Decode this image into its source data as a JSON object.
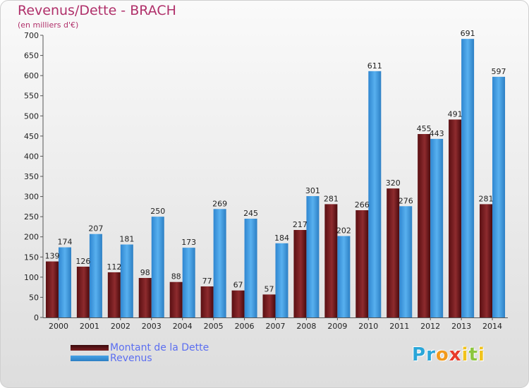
{
  "title": "Revenus/Dette - BRACH",
  "subtitle": "(en milliers d'€)",
  "logo": {
    "text": "Proxiti",
    "letters": [
      {
        "ch": "P",
        "color": "#2aa6d8"
      },
      {
        "ch": "r",
        "color": "#2aa6d8"
      },
      {
        "ch": "o",
        "color": "#f29a1c"
      },
      {
        "ch": "x",
        "color": "#e83a2a"
      },
      {
        "ch": "i",
        "color": "#f1c31c"
      },
      {
        "ch": "t",
        "color": "#8cc63e"
      },
      {
        "ch": "i",
        "color": "#f1c31c"
      }
    ]
  },
  "chart_data": {
    "type": "bar",
    "title": "Revenus/Dette - BRACH",
    "subtitle": "(en milliers d'€)",
    "categories": [
      "2000",
      "2001",
      "2002",
      "2003",
      "2004",
      "2005",
      "2006",
      "2007",
      "2008",
      "2009",
      "2010",
      "2011",
      "2012",
      "2013",
      "2014"
    ],
    "series": [
      {
        "name": "Montant de la Dette",
        "color": "#7a1f22",
        "values": [
          139,
          126,
          112,
          98,
          88,
          77,
          67,
          57,
          217,
          281,
          266,
          320,
          455,
          491,
          281
        ]
      },
      {
        "name": "Revenus",
        "color": "#47a2e6",
        "values": [
          174,
          207,
          181,
          250,
          173,
          269,
          245,
          184,
          301,
          202,
          611,
          276,
          443,
          691,
          597
        ]
      }
    ],
    "ylim": [
      0,
      700
    ],
    "yticks": [
      0,
      50,
      100,
      150,
      200,
      250,
      300,
      350,
      400,
      450,
      500,
      550,
      600,
      650,
      700
    ],
    "grid": false,
    "legend_position": "bottom-left"
  }
}
